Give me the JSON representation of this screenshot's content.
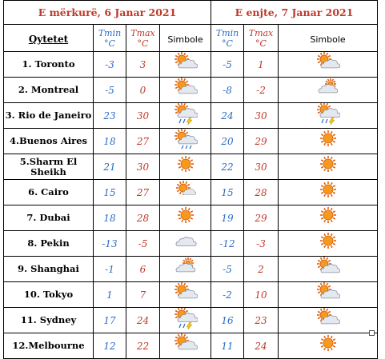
{
  "days": [
    {
      "label": "E mërkurë, 6 Janar 2021"
    },
    {
      "label": "E enjte, 7 Janar 2021"
    }
  ],
  "headers": {
    "city": "Qytetet",
    "tmin": "Tmin",
    "tmax": "Tmax",
    "unit": "°C",
    "symbol": "Simbole"
  },
  "rows": [
    {
      "city": "1. Toronto",
      "d1": {
        "min": "-3",
        "max": "3",
        "icon": "sun-cloud-icon"
      },
      "d2": {
        "min": "-5",
        "max": "1",
        "icon": "sun-cloud-icon"
      }
    },
    {
      "city": "2. Montreal",
      "d1": {
        "min": "-5",
        "max": "0",
        "icon": "sun-cloud-icon"
      },
      "d2": {
        "min": "-8",
        "max": "-2",
        "icon": "cloud-sun-small-icon"
      }
    },
    {
      "city": "3. Rio de Janeiro",
      "d1": {
        "min": "23",
        "max": "30",
        "icon": "sun-rain-thunder-icon"
      },
      "d2": {
        "min": "24",
        "max": "30",
        "icon": "sun-rain-thunder-icon"
      }
    },
    {
      "city": "4.Buenos Aires",
      "d1": {
        "min": "18",
        "max": "27",
        "icon": "sun-rain-cloud-icon"
      },
      "d2": {
        "min": "20",
        "max": "29",
        "icon": "sun-icon"
      }
    },
    {
      "city": "5.Sharm El Sheikh",
      "d1": {
        "min": "21",
        "max": "30",
        "icon": "sun-icon"
      },
      "d2": {
        "min": "22",
        "max": "30",
        "icon": "sun-icon"
      }
    },
    {
      "city": "6. Cairo",
      "d1": {
        "min": "15",
        "max": "27",
        "icon": "sun-cloud-small-icon"
      },
      "d2": {
        "min": "15",
        "max": "28",
        "icon": "sun-icon"
      }
    },
    {
      "city": "7. Dubai",
      "d1": {
        "min": "18",
        "max": "28",
        "icon": "sun-icon"
      },
      "d2": {
        "min": "19",
        "max": "29",
        "icon": "sun-icon"
      }
    },
    {
      "city": "8. Pekin",
      "d1": {
        "min": "-13",
        "max": "-5",
        "icon": "cloud-icon"
      },
      "d2": {
        "min": "-12",
        "max": "-3",
        "icon": "sun-icon"
      }
    },
    {
      "city": "9. Shanghai",
      "d1": {
        "min": "-1",
        "max": "6",
        "icon": "cloud-sun-small-icon"
      },
      "d2": {
        "min": "-5",
        "max": "2",
        "icon": "sun-cloud-icon"
      }
    },
    {
      "city": "10. Tokyo",
      "d1": {
        "min": "1",
        "max": "7",
        "icon": "sun-cloud-icon"
      },
      "d2": {
        "min": "-2",
        "max": "10",
        "icon": "sun-cloud-icon"
      }
    },
    {
      "city": "11. Sydney",
      "d1": {
        "min": "17",
        "max": "24",
        "icon": "sun-rain-thunder-icon"
      },
      "d2": {
        "min": "16",
        "max": "23",
        "icon": "sun-cloud-icon"
      }
    },
    {
      "city": "12.Melbourne",
      "d1": {
        "min": "12",
        "max": "22",
        "icon": "sun-cloud-icon"
      },
      "d2": {
        "min": "11",
        "max": "24",
        "icon": "sun-icon"
      }
    }
  ],
  "colors": {
    "tmin": "#2b6cc4",
    "tmax": "#c0392b",
    "sun": "#f07d10",
    "cloud": "#d9dde6"
  }
}
